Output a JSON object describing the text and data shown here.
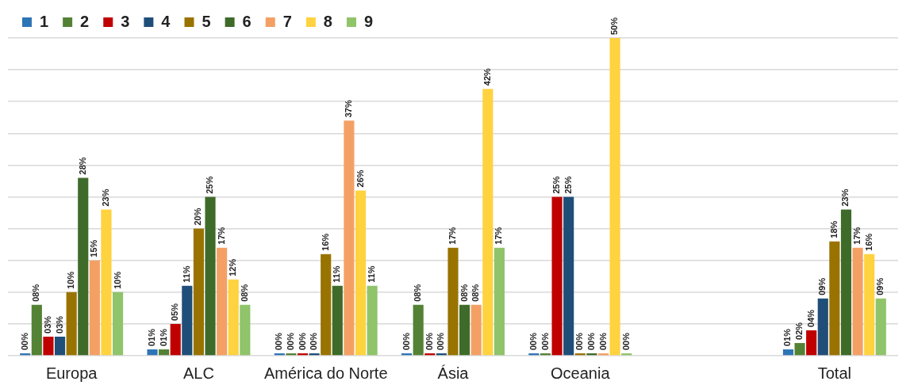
{
  "chart_data": {
    "type": "bar",
    "categories": [
      "Europa",
      "ALC",
      "América do Norte",
      "Ásia",
      "Oceania",
      null,
      "Total"
    ],
    "series": [
      {
        "name": "1",
        "color": "#2e75b6",
        "values": [
          0,
          1,
          0,
          0,
          0,
          null,
          1
        ],
        "value_labels": [
          "00%",
          "01%",
          "00%",
          "00%",
          "00%",
          null,
          "01%"
        ]
      },
      {
        "name": "2",
        "color": "#548235",
        "values": [
          8,
          1,
          0,
          8,
          0,
          null,
          2
        ],
        "value_labels": [
          "08%",
          "01%",
          "00%",
          "08%",
          "00%",
          null,
          "02%"
        ]
      },
      {
        "name": "3",
        "color": "#c00000",
        "values": [
          3,
          5,
          0,
          0,
          25,
          null,
          4
        ],
        "value_labels": [
          "03%",
          "05%",
          "00%",
          "00%",
          "25%",
          null,
          "04%"
        ]
      },
      {
        "name": "4",
        "color": "#1f4e79",
        "values": [
          3,
          11,
          0,
          0,
          25,
          null,
          9
        ],
        "value_labels": [
          "03%",
          "11%",
          "00%",
          "00%",
          "25%",
          null,
          "09%"
        ]
      },
      {
        "name": "5",
        "color": "#997300",
        "values": [
          10,
          20,
          16,
          17,
          0,
          null,
          18
        ],
        "value_labels": [
          "10%",
          "20%",
          "16%",
          "17%",
          "00%",
          null,
          "18%"
        ]
      },
      {
        "name": "6",
        "color": "#3f6b2a",
        "values": [
          28,
          25,
          11,
          8,
          0,
          null,
          23
        ],
        "value_labels": [
          "28%",
          "25%",
          "11%",
          "08%",
          "00%",
          null,
          "23%"
        ]
      },
      {
        "name": "7",
        "color": "#f4a064",
        "values": [
          15,
          17,
          37,
          8,
          0,
          null,
          17
        ],
        "value_labels": [
          "15%",
          "17%",
          "37%",
          "08%",
          "00%",
          null,
          "17%"
        ]
      },
      {
        "name": "8",
        "color": "#ffd23f",
        "values": [
          23,
          12,
          26,
          42,
          50,
          null,
          16
        ],
        "value_labels": [
          "23%",
          "12%",
          "26%",
          "42%",
          "50%",
          null,
          "16%"
        ]
      },
      {
        "name": "9",
        "color": "#8fc46a",
        "values": [
          10,
          8,
          11,
          17,
          0,
          null,
          9
        ],
        "value_labels": [
          "10%",
          "08%",
          "11%",
          "17%",
          "00%",
          null,
          "09%"
        ]
      }
    ],
    "ylim": [
      0,
      50
    ],
    "yticks": [
      {
        "value": 0,
        "label": null
      },
      {
        "value": 5,
        "label": null
      },
      {
        "value": 10,
        "label": null
      },
      {
        "value": 15,
        "label": null
      },
      {
        "value": 20,
        "label": null
      },
      {
        "value": 25,
        "label": null
      },
      {
        "value": 30,
        "label": null
      },
      {
        "value": 35,
        "label": null
      },
      {
        "value": 40,
        "label": null
      },
      {
        "value": 45,
        "label": null
      },
      {
        "value": 50,
        "label": null
      }
    ],
    "tick_labels": "x",
    "grid": "y",
    "legend": "top left"
  }
}
